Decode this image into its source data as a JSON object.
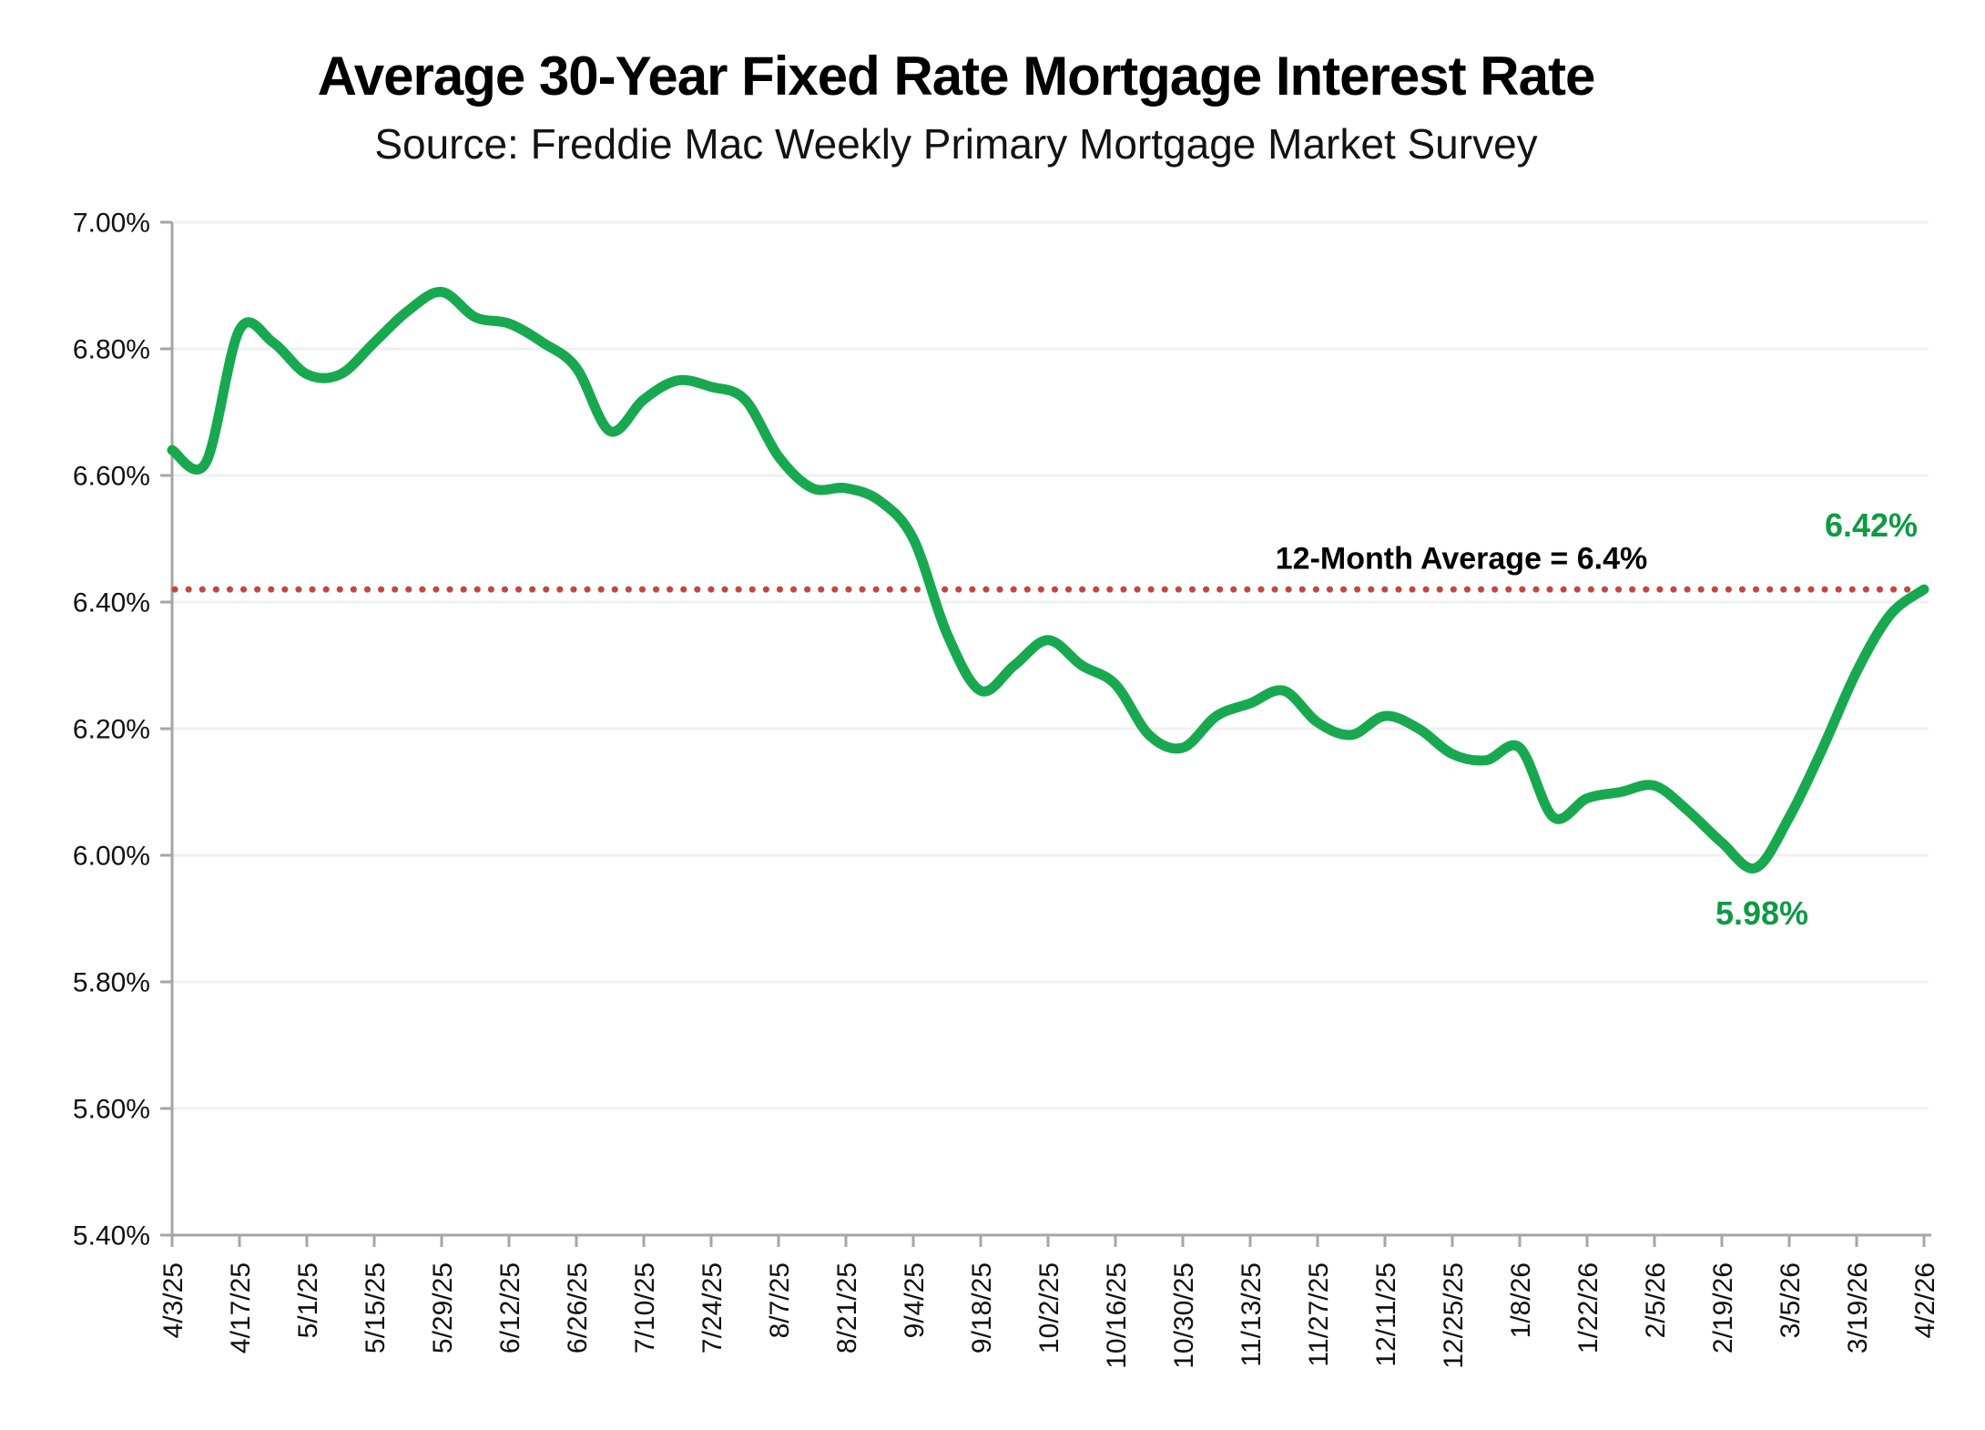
{
  "header": {
    "title": "Average 30-Year Fixed Rate Mortgage Interest Rate",
    "subtitle": "Source: Freddie Mac Weekly Primary Mortgage Market Survey"
  },
  "chart_data": {
    "type": "line",
    "title": "Average 30-Year Fixed Rate Mortgage Interest Rate",
    "subtitle": "Source: Freddie Mac Weekly Primary Mortgage Market Survey",
    "xlabel": "",
    "ylabel": "",
    "ylim": [
      5.4,
      7.0
    ],
    "y_tick_step": 0.2,
    "y_tick_labels": [
      "7.00%",
      "6.80%",
      "6.60%",
      "6.40%",
      "6.20%",
      "6.00%",
      "5.80%",
      "5.60%",
      "5.40%"
    ],
    "x_tick_labels": [
      "4/3/25",
      "4/17/25",
      "5/1/25",
      "5/15/25",
      "5/29/25",
      "6/12/25",
      "6/26/25",
      "7/10/25",
      "7/24/25",
      "8/7/25",
      "8/21/25",
      "9/4/25",
      "9/18/25",
      "10/2/25",
      "10/16/25",
      "10/30/25",
      "11/13/25",
      "11/27/25",
      "12/11/25",
      "12/25/25",
      "1/8/26",
      "1/22/26",
      "2/5/26",
      "2/19/26",
      "3/5/26",
      "3/19/26",
      "4/2/26"
    ],
    "x": [
      "4/3/25",
      "4/10/25",
      "4/17/25",
      "4/24/25",
      "5/1/25",
      "5/8/25",
      "5/15/25",
      "5/22/25",
      "5/29/25",
      "6/5/25",
      "6/12/25",
      "6/19/25",
      "6/26/25",
      "7/3/25",
      "7/10/25",
      "7/17/25",
      "7/24/25",
      "7/31/25",
      "8/7/25",
      "8/14/25",
      "8/21/25",
      "8/28/25",
      "9/4/25",
      "9/11/25",
      "9/18/25",
      "9/25/25",
      "10/2/25",
      "10/9/25",
      "10/16/25",
      "10/23/25",
      "10/30/25",
      "11/6/25",
      "11/13/25",
      "11/20/25",
      "11/27/25",
      "12/4/25",
      "12/11/25",
      "12/18/25",
      "12/25/25",
      "1/1/26",
      "1/8/26",
      "1/15/26",
      "1/22/26",
      "1/29/26",
      "2/5/26",
      "2/12/26",
      "2/19/26",
      "2/26/26",
      "3/5/26",
      "3/12/26",
      "3/19/26",
      "3/26/26",
      "4/2/26"
    ],
    "series": [
      {
        "name": "30-year fixed rate mortgage average",
        "color": "#18A950",
        "values": [
          6.64,
          6.62,
          6.83,
          6.81,
          6.76,
          6.76,
          6.81,
          6.86,
          6.89,
          6.85,
          6.84,
          6.81,
          6.77,
          6.67,
          6.72,
          6.75,
          6.74,
          6.72,
          6.63,
          6.58,
          6.58,
          6.56,
          6.5,
          6.35,
          6.26,
          6.3,
          6.34,
          6.3,
          6.27,
          6.19,
          6.17,
          6.22,
          6.24,
          6.26,
          6.21,
          6.19,
          6.22,
          6.2,
          6.16,
          6.15,
          6.17,
          6.06,
          6.09,
          6.1,
          6.11,
          6.07,
          6.02,
          5.98,
          6.06,
          6.17,
          6.29,
          6.38,
          6.42
        ]
      }
    ],
    "average_line": {
      "label": "12-Month Average = 6.4%",
      "value": 6.42,
      "color": "#C4463E",
      "style": "dotted"
    },
    "annotations": [
      {
        "id": "latest-value",
        "text": "6.42%",
        "color": "#0F9A44"
      },
      {
        "id": "lowest-value",
        "text": "5.98%",
        "color": "#0F9A44"
      }
    ],
    "grid": "horizontal",
    "legend": "none",
    "axis_color": "#A6A6A6",
    "gridline_color": "#F0F0F0",
    "tick_label_color": "#111111"
  }
}
